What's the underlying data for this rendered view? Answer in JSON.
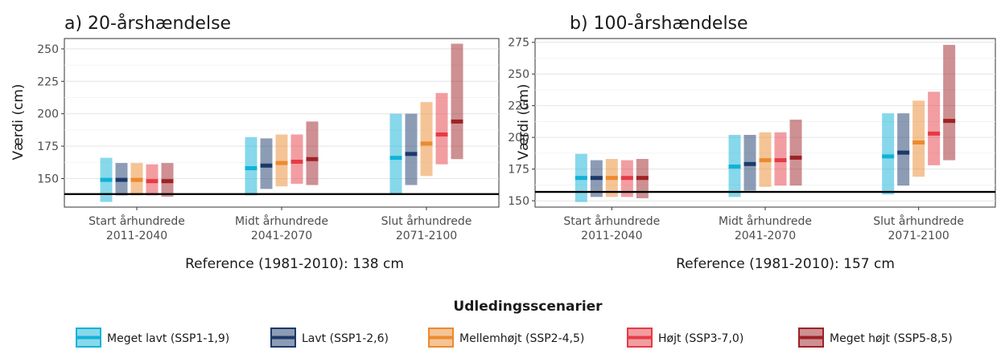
{
  "colors": {
    "ssp119": "#10b2d8",
    "ssp126": "#1b3a6b",
    "ssp245": "#ec8a2d",
    "ssp370": "#e63b45",
    "ssp585": "#9e2226"
  },
  "legend": {
    "title": "Udledingsscenarier",
    "items": [
      {
        "key": "ssp119",
        "label": "Meget lavt (SSP1-1,9)"
      },
      {
        "key": "ssp126",
        "label": "Lavt (SSP1-2,6)"
      },
      {
        "key": "ssp245",
        "label": "Mellemhøjt (SSP2-4,5)"
      },
      {
        "key": "ssp370",
        "label": "Højt (SSP3-7,0)"
      },
      {
        "key": "ssp585",
        "label": "Meget højt (SSP5-8,5)"
      }
    ]
  },
  "chart_data": [
    {
      "type": "bar",
      "title": "a) 20-årshændelse",
      "ylabel": "Værdi (cm)",
      "xlabel": "Reference (1981-2010): 138 cm",
      "reference": 138,
      "ylim": [
        128,
        258
      ],
      "yticks": [
        150,
        175,
        200,
        225,
        250
      ],
      "grid": true,
      "categories": [
        {
          "line1": "Start århundrede",
          "line2": "2011-2040"
        },
        {
          "line1": "Midt århundrede",
          "line2": "2041-2070"
        },
        {
          "line1": "Slut århundrede",
          "line2": "2071-2100"
        }
      ],
      "series": [
        {
          "name": "Meget lavt (SSP1-1,9)",
          "key": "ssp119",
          "low": [
            132,
            137,
            138
          ],
          "high": [
            166,
            182,
            200
          ],
          "median": [
            149,
            158,
            166
          ]
        },
        {
          "name": "Lavt (SSP1-2,6)",
          "key": "ssp126",
          "low": [
            137,
            142,
            145
          ],
          "high": [
            162,
            181,
            200
          ],
          "median": [
            149,
            160,
            169
          ]
        },
        {
          "name": "Mellemhøjt (SSP2-4,5)",
          "key": "ssp245",
          "low": [
            137,
            144,
            152
          ],
          "high": [
            162,
            184,
            209
          ],
          "median": [
            149,
            162,
            177
          ]
        },
        {
          "name": "Højt (SSP3-7,0)",
          "key": "ssp370",
          "low": [
            137,
            146,
            161
          ],
          "high": [
            161,
            184,
            216
          ],
          "median": [
            148,
            163,
            184
          ]
        },
        {
          "name": "Meget højt (SSP5-8,5)",
          "key": "ssp585",
          "low": [
            136,
            145,
            165
          ],
          "high": [
            162,
            194,
            254
          ],
          "median": [
            148,
            165,
            194
          ]
        }
      ]
    },
    {
      "type": "bar",
      "title": "b) 100-årshændelse",
      "ylabel": "Værdi (cm)",
      "xlabel": "Reference (1981-2010): 157 cm",
      "reference": 157,
      "ylim": [
        145,
        278
      ],
      "yticks": [
        150,
        175,
        200,
        225,
        250,
        275
      ],
      "grid": true,
      "categories": [
        {
          "line1": "Start århundrede",
          "line2": "2011-2040"
        },
        {
          "line1": "Midt århundrede",
          "line2": "2041-2070"
        },
        {
          "line1": "Slut århundrede",
          "line2": "2071-2100"
        }
      ],
      "series": [
        {
          "name": "Meget lavt (SSP1-1,9)",
          "key": "ssp119",
          "low": [
            149,
            153,
            155
          ],
          "high": [
            187,
            202,
            219
          ],
          "median": [
            168,
            177,
            185
          ]
        },
        {
          "name": "Lavt (SSP1-2,6)",
          "key": "ssp126",
          "low": [
            153,
            158,
            162
          ],
          "high": [
            182,
            202,
            219
          ],
          "median": [
            168,
            179,
            188
          ]
        },
        {
          "name": "Mellemhøjt (SSP2-4,5)",
          "key": "ssp245",
          "low": [
            153,
            161,
            169
          ],
          "high": [
            183,
            204,
            229
          ],
          "median": [
            168,
            182,
            196
          ]
        },
        {
          "name": "Højt (SSP3-7,0)",
          "key": "ssp370",
          "low": [
            153,
            162,
            178
          ],
          "high": [
            182,
            204,
            236
          ],
          "median": [
            168,
            182,
            203
          ]
        },
        {
          "name": "Meget højt (SSP5-8,5)",
          "key": "ssp585",
          "low": [
            152,
            162,
            182
          ],
          "high": [
            183,
            214,
            273
          ],
          "median": [
            168,
            184,
            213
          ]
        }
      ]
    }
  ]
}
